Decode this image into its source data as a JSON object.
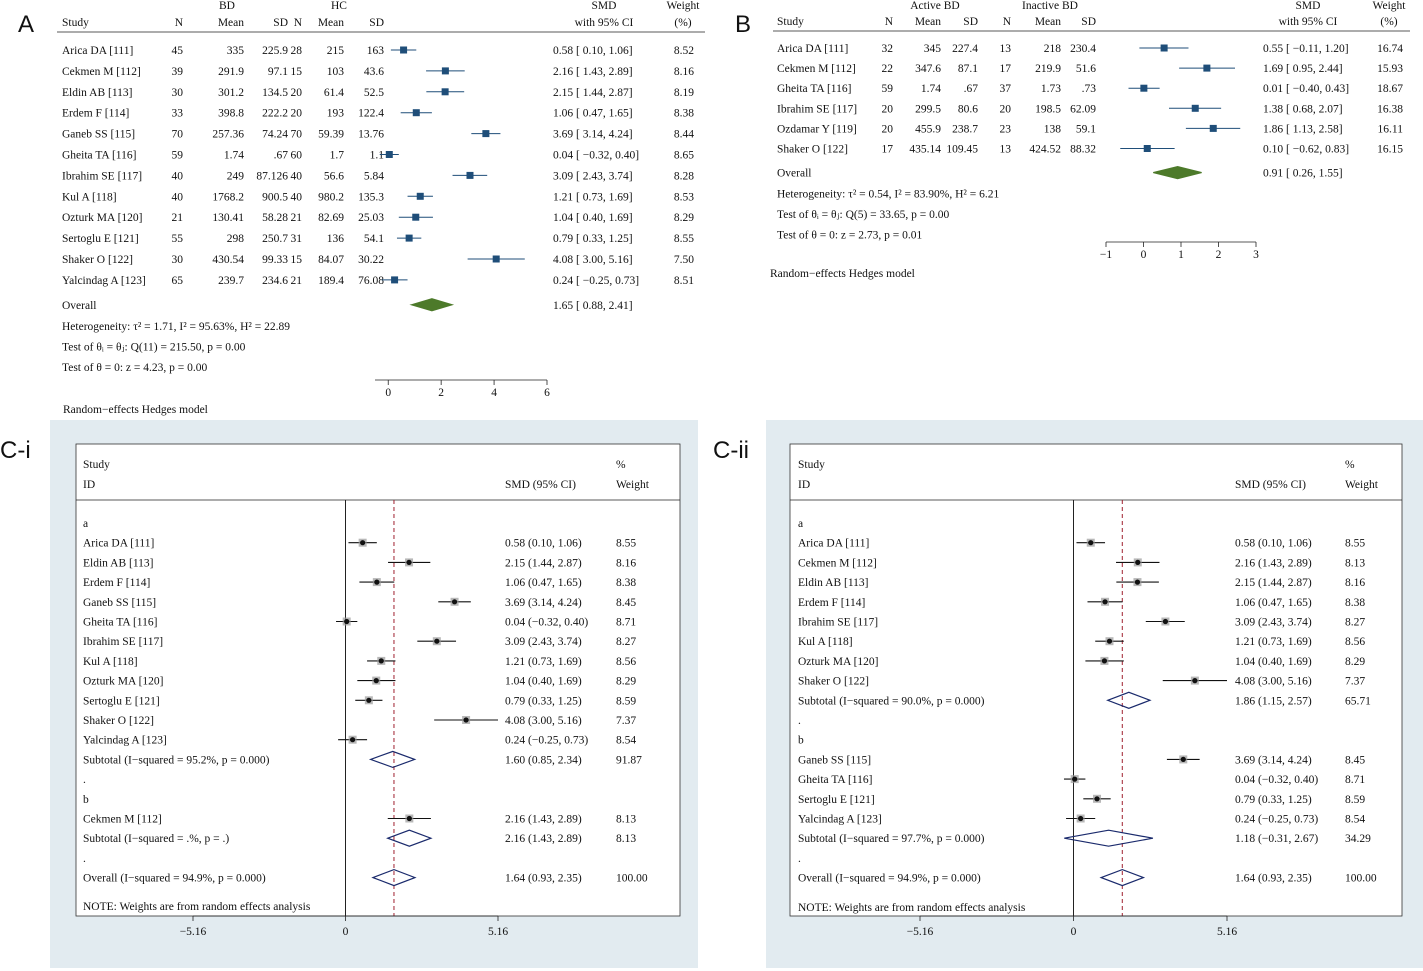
{
  "chart_data": [
    {
      "panel": "A",
      "type": "forest",
      "group_headers": [
        "BD",
        "HC"
      ],
      "columns": [
        "Study",
        "N",
        "Mean",
        "SD",
        "N",
        "Mean",
        "SD"
      ],
      "effect_header": [
        "SMD",
        "with 95% CI"
      ],
      "weight_header": [
        "Weight",
        "(%)"
      ],
      "rows": [
        {
          "study": "Arica DA [111]",
          "c1": "45",
          "c2": "335",
          "c3": "225.9",
          "c4": "28",
          "c5": "215",
          "c6": "163",
          "smd": 0.58,
          "lo": 0.1,
          "hi": 1.06,
          "ci": "0.58 [   0.10,  1.06]",
          "w": "8.52"
        },
        {
          "study": "Cekmen M [112]",
          "c1": "39",
          "c2": "291.9",
          "c3": "97.1",
          "c4": "15",
          "c5": "103",
          "c6": "43.6",
          "smd": 2.16,
          "lo": 1.43,
          "hi": 2.89,
          "ci": "2.16 [   1.43,  2.89]",
          "w": "8.16"
        },
        {
          "study": "Eldin AB [113]",
          "c1": "30",
          "c2": "301.2",
          "c3": "134.5",
          "c4": "20",
          "c5": "61.4",
          "c6": "52.5",
          "smd": 2.15,
          "lo": 1.44,
          "hi": 2.87,
          "ci": "2.15 [   1.44,  2.87]",
          "w": "8.19"
        },
        {
          "study": "Erdem F [114]",
          "c1": "33",
          "c2": "398.8",
          "c3": "222.2",
          "c4": "20",
          "c5": "193",
          "c6": "122.4",
          "smd": 1.06,
          "lo": 0.47,
          "hi": 1.65,
          "ci": "1.06 [   0.47,  1.65]",
          "w": "8.38"
        },
        {
          "study": "Ganeb SS [115]",
          "c1": "70",
          "c2": "257.36",
          "c3": "74.24",
          "c4": "70",
          "c5": "59.39",
          "c6": "13.76",
          "smd": 3.69,
          "lo": 3.14,
          "hi": 4.24,
          "ci": "3.69 [   3.14,  4.24]",
          "w": "8.44"
        },
        {
          "study": "Gheita TA [116]",
          "c1": "59",
          "c2": "1.74",
          "c3": ".67",
          "c4": "60",
          "c5": "1.7",
          "c6": "1.1",
          "smd": 0.04,
          "lo": -0.32,
          "hi": 0.4,
          "ci": "0.04 [ −0.32,  0.40]",
          "w": "8.65"
        },
        {
          "study": "Ibrahim SE [117]",
          "c1": "40",
          "c2": "249",
          "c3": "87.126",
          "c4": "40",
          "c5": "56.6",
          "c6": "5.84",
          "smd": 3.09,
          "lo": 2.43,
          "hi": 3.74,
          "ci": "3.09 [   2.43,  3.74]",
          "w": "8.28"
        },
        {
          "study": "Kul A [118]",
          "c1": "40",
          "c2": "1768.2",
          "c3": "900.5",
          "c4": "40",
          "c5": "980.2",
          "c6": "135.3",
          "smd": 1.21,
          "lo": 0.73,
          "hi": 1.69,
          "ci": "1.21 [   0.73,  1.69]",
          "w": "8.53"
        },
        {
          "study": "Ozturk MA [120]",
          "c1": "21",
          "c2": "130.41",
          "c3": "58.28",
          "c4": "21",
          "c5": "82.69",
          "c6": "25.03",
          "smd": 1.04,
          "lo": 0.4,
          "hi": 1.69,
          "ci": "1.04 [   0.40,  1.69]",
          "w": "8.29"
        },
        {
          "study": "Sertoglu E [121]",
          "c1": "55",
          "c2": "298",
          "c3": "250.7",
          "c4": "31",
          "c5": "136",
          "c6": "54.1",
          "smd": 0.79,
          "lo": 0.33,
          "hi": 1.25,
          "ci": "0.79 [   0.33,  1.25]",
          "w": "8.55"
        },
        {
          "study": "Shaker O [122]",
          "c1": "30",
          "c2": "430.54",
          "c3": "99.33",
          "c4": "15",
          "c5": "84.07",
          "c6": "30.22",
          "smd": 4.08,
          "lo": 3.0,
          "hi": 5.16,
          "ci": "4.08 [   3.00,  5.16]",
          "w": "7.50"
        },
        {
          "study": "Yalcindag A [123]",
          "c1": "65",
          "c2": "239.7",
          "c3": "234.6",
          "c4": "21",
          "c5": "189.4",
          "c6": "76.08",
          "smd": 0.24,
          "lo": -0.25,
          "hi": 0.73,
          "ci": "0.24 [ −0.25,  0.73]",
          "w": "8.51"
        }
      ],
      "overall": {
        "label": "Overall",
        "smd": 1.65,
        "lo": 0.88,
        "hi": 2.41,
        "ci": "1.65 [   0.88,  2.41]"
      },
      "stats": [
        "Heterogeneity: τ² = 1.71, I² = 95.63%, H² = 22.89",
        "Test of θᵢ = θⱼ: Q(11) = 215.50, p = 0.00",
        "Test of θ = 0: z = 4.23, p = 0.00"
      ],
      "xticks": [
        0,
        2,
        4,
        6
      ],
      "xlim": [
        -0.5,
        6
      ],
      "model": "Random−effects Hedges model"
    },
    {
      "panel": "B",
      "type": "forest",
      "group_headers": [
        "Active BD",
        "Inactive BD"
      ],
      "columns": [
        "Study",
        "N",
        "Mean",
        "SD",
        "N",
        "Mean",
        "SD"
      ],
      "effect_header": [
        "SMD",
        "with 95% CI"
      ],
      "weight_header": [
        "Weight",
        "(%)"
      ],
      "rows": [
        {
          "study": "Arica DA [111]",
          "c1": "32",
          "c2": "345",
          "c3": "227.4",
          "c4": "13",
          "c5": "218",
          "c6": "230.4",
          "smd": 0.55,
          "lo": -0.11,
          "hi": 1.2,
          "ci": "0.55 [ −0.11,  1.20]",
          "w": "16.74"
        },
        {
          "study": "Cekmen M [112]",
          "c1": "22",
          "c2": "347.6",
          "c3": "87.1",
          "c4": "17",
          "c5": "219.9",
          "c6": "51.6",
          "smd": 1.69,
          "lo": 0.95,
          "hi": 2.44,
          "ci": "1.69 [   0.95,  2.44]",
          "w": "15.93"
        },
        {
          "study": "Gheita TA [116]",
          "c1": "59",
          "c2": "1.74",
          "c3": ".67",
          "c4": "37",
          "c5": "1.73",
          "c6": ".73",
          "smd": 0.01,
          "lo": -0.4,
          "hi": 0.43,
          "ci": "0.01 [ −0.40,  0.43]",
          "w": "18.67"
        },
        {
          "study": "Ibrahim SE [117]",
          "c1": "20",
          "c2": "299.5",
          "c3": "80.6",
          "c4": "20",
          "c5": "198.5",
          "c6": "62.09",
          "smd": 1.38,
          "lo": 0.68,
          "hi": 2.07,
          "ci": "1.38 [   0.68,  2.07]",
          "w": "16.38"
        },
        {
          "study": "Ozdamar Y [119]",
          "c1": "20",
          "c2": "455.9",
          "c3": "238.7",
          "c4": "23",
          "c5": "138",
          "c6": "59.1",
          "smd": 1.86,
          "lo": 1.13,
          "hi": 2.58,
          "ci": "1.86 [   1.13,  2.58]",
          "w": "16.11"
        },
        {
          "study": "Shaker O [122]",
          "c1": "17",
          "c2": "435.14",
          "c3": "109.45",
          "c4": "13",
          "c5": "424.52",
          "c6": "88.32",
          "smd": 0.1,
          "lo": -0.62,
          "hi": 0.83,
          "ci": "0.10 [ −0.62,  0.83]",
          "w": "16.15"
        }
      ],
      "overall": {
        "label": "Overall",
        "smd": 0.91,
        "lo": 0.26,
        "hi": 1.55,
        "ci": "0.91 [   0.26,  1.55]"
      },
      "stats": [
        "Heterogeneity: τ² = 0.54, I² = 83.90%, H² = 6.21",
        "Test of θᵢ = θⱼ: Q(5) = 33.65, p = 0.00",
        "Test of θ = 0: z = 2.73, p = 0.01"
      ],
      "xticks": [
        -1,
        0,
        1,
        2,
        3
      ],
      "xlim": [
        -1,
        3
      ],
      "model": "Random−effects Hedges model"
    },
    {
      "panel": "C-i",
      "type": "forest-subgroup",
      "header": {
        "study": [
          "Study",
          "ID"
        ],
        "smd": "SMD (95% CI)",
        "weight": [
          "%",
          "Weight"
        ]
      },
      "items": [
        {
          "kind": "label",
          "text": "a"
        },
        {
          "kind": "study",
          "study": "Arica DA [111]",
          "smd": 0.58,
          "lo": 0.1,
          "hi": 1.06,
          "ci": "0.58 (0.10, 1.06)",
          "w": "8.55"
        },
        {
          "kind": "study",
          "study": "Eldin AB [113]",
          "smd": 2.15,
          "lo": 1.44,
          "hi": 2.87,
          "ci": "2.15 (1.44, 2.87)",
          "w": "8.16"
        },
        {
          "kind": "study",
          "study": "Erdem F [114]",
          "smd": 1.06,
          "lo": 0.47,
          "hi": 1.65,
          "ci": "1.06 (0.47, 1.65)",
          "w": "8.38"
        },
        {
          "kind": "study",
          "study": "Ganeb SS [115]",
          "smd": 3.69,
          "lo": 3.14,
          "hi": 4.24,
          "ci": "3.69 (3.14, 4.24)",
          "w": "8.45"
        },
        {
          "kind": "study",
          "study": "Gheita TA [116]",
          "smd": 0.04,
          "lo": -0.32,
          "hi": 0.4,
          "ci": "0.04 (−0.32, 0.40)",
          "w": "8.71"
        },
        {
          "kind": "study",
          "study": "Ibrahim SE [117]",
          "smd": 3.09,
          "lo": 2.43,
          "hi": 3.74,
          "ci": "3.09 (2.43, 3.74)",
          "w": "8.27"
        },
        {
          "kind": "study",
          "study": "Kul A [118]",
          "smd": 1.21,
          "lo": 0.73,
          "hi": 1.69,
          "ci": "1.21 (0.73, 1.69)",
          "w": "8.56"
        },
        {
          "kind": "study",
          "study": "Ozturk MA [120]",
          "smd": 1.04,
          "lo": 0.4,
          "hi": 1.69,
          "ci": "1.04 (0.40, 1.69)",
          "w": "8.29"
        },
        {
          "kind": "study",
          "study": "Sertoglu E [121]",
          "smd": 0.79,
          "lo": 0.33,
          "hi": 1.25,
          "ci": "0.79 (0.33, 1.25)",
          "w": "8.59"
        },
        {
          "kind": "study",
          "study": "Shaker O [122]",
          "smd": 4.08,
          "lo": 3.0,
          "hi": 5.16,
          "ci": "4.08 (3.00, 5.16)",
          "w": "7.37"
        },
        {
          "kind": "study",
          "study": "Yalcindag A [123]",
          "smd": 0.24,
          "lo": -0.25,
          "hi": 0.73,
          "ci": "0.24 (−0.25, 0.73)",
          "w": "8.54"
        },
        {
          "kind": "subtotal",
          "study": "Subtotal  (I−squared = 95.2%, p = 0.000)",
          "smd": 1.6,
          "lo": 0.85,
          "hi": 2.34,
          "ci": "1.60 (0.85, 2.34)",
          "w": "91.87"
        },
        {
          "kind": "label",
          "text": "."
        },
        {
          "kind": "label",
          "text": "b"
        },
        {
          "kind": "study",
          "study": "Cekmen M [112]",
          "smd": 2.16,
          "lo": 1.43,
          "hi": 2.89,
          "ci": "2.16 (1.43, 2.89)",
          "w": "8.13"
        },
        {
          "kind": "subtotal",
          "study": "Subtotal  (I−squared = .%, p = .)",
          "smd": 2.16,
          "lo": 1.43,
          "hi": 2.89,
          "ci": "2.16 (1.43, 2.89)",
          "w": "8.13"
        },
        {
          "kind": "label",
          "text": "."
        },
        {
          "kind": "overall",
          "study": "Overall  (I−squared = 94.9%, p = 0.000)",
          "smd": 1.64,
          "lo": 0.93,
          "hi": 2.35,
          "ci": "1.64 (0.93, 2.35)",
          "w": "100.00"
        }
      ],
      "note": "NOTE: Weights are from random effects analysis",
      "xticks": [
        "−5.16",
        "0",
        "5.16"
      ],
      "xlim": [
        -5.16,
        5.16
      ],
      "reference_line": 1.64
    },
    {
      "panel": "C-ii",
      "type": "forest-subgroup",
      "header": {
        "study": [
          "Study",
          "ID"
        ],
        "smd": "SMD (95% CI)",
        "weight": [
          "%",
          "Weight"
        ]
      },
      "items": [
        {
          "kind": "label",
          "text": "a"
        },
        {
          "kind": "study",
          "study": "Arica DA [111]",
          "smd": 0.58,
          "lo": 0.1,
          "hi": 1.06,
          "ci": "0.58 (0.10, 1.06)",
          "w": "8.55"
        },
        {
          "kind": "study",
          "study": "Cekmen M [112]",
          "smd": 2.16,
          "lo": 1.43,
          "hi": 2.89,
          "ci": "2.16 (1.43, 2.89)",
          "w": "8.13"
        },
        {
          "kind": "study",
          "study": "Eldin AB [113]",
          "smd": 2.15,
          "lo": 1.44,
          "hi": 2.87,
          "ci": "2.15 (1.44, 2.87)",
          "w": "8.16"
        },
        {
          "kind": "study",
          "study": "Erdem F [114]",
          "smd": 1.06,
          "lo": 0.47,
          "hi": 1.65,
          "ci": "1.06 (0.47, 1.65)",
          "w": "8.38"
        },
        {
          "kind": "study",
          "study": "Ibrahim SE [117]",
          "smd": 3.09,
          "lo": 2.43,
          "hi": 3.74,
          "ci": "3.09 (2.43, 3.74)",
          "w": "8.27"
        },
        {
          "kind": "study",
          "study": "Kul A [118]",
          "smd": 1.21,
          "lo": 0.73,
          "hi": 1.69,
          "ci": "1.21 (0.73, 1.69)",
          "w": "8.56"
        },
        {
          "kind": "study",
          "study": "Ozturk MA [120]",
          "smd": 1.04,
          "lo": 0.4,
          "hi": 1.69,
          "ci": "1.04 (0.40, 1.69)",
          "w": "8.29"
        },
        {
          "kind": "study",
          "study": "Shaker O [122]",
          "smd": 4.08,
          "lo": 3.0,
          "hi": 5.16,
          "ci": "4.08 (3.00, 5.16)",
          "w": "7.37"
        },
        {
          "kind": "subtotal",
          "study": "Subtotal  (I−squared = 90.0%, p = 0.000)",
          "smd": 1.86,
          "lo": 1.15,
          "hi": 2.57,
          "ci": "1.86 (1.15, 2.57)",
          "w": "65.71"
        },
        {
          "kind": "label",
          "text": "."
        },
        {
          "kind": "label",
          "text": "b"
        },
        {
          "kind": "study",
          "study": "Ganeb SS [115]",
          "smd": 3.69,
          "lo": 3.14,
          "hi": 4.24,
          "ci": "3.69 (3.14, 4.24)",
          "w": "8.45"
        },
        {
          "kind": "study",
          "study": "Gheita TA [116]",
          "smd": 0.04,
          "lo": -0.32,
          "hi": 0.4,
          "ci": "0.04 (−0.32, 0.40)",
          "w": "8.71"
        },
        {
          "kind": "study",
          "study": "Sertoglu E [121]",
          "smd": 0.79,
          "lo": 0.33,
          "hi": 1.25,
          "ci": "0.79 (0.33, 1.25)",
          "w": "8.59"
        },
        {
          "kind": "study",
          "study": "Yalcindag A [123]",
          "smd": 0.24,
          "lo": -0.25,
          "hi": 0.73,
          "ci": "0.24 (−0.25, 0.73)",
          "w": "8.54"
        },
        {
          "kind": "subtotal",
          "study": "Subtotal  (I−squared = 97.7%, p = 0.000)",
          "smd": 1.18,
          "lo": -0.31,
          "hi": 2.67,
          "ci": "1.18 (−0.31, 2.67)",
          "w": "34.29"
        },
        {
          "kind": "label",
          "text": "."
        },
        {
          "kind": "overall",
          "study": "Overall  (I−squared = 94.9%, p = 0.000)",
          "smd": 1.64,
          "lo": 0.93,
          "hi": 2.35,
          "ci": "1.64 (0.93, 2.35)",
          "w": "100.00"
        }
      ],
      "note": "NOTE: Weights are from random effects analysis",
      "xticks": [
        "−5.16",
        "0",
        "5.16"
      ],
      "xlim": [
        -5.16,
        5.16
      ],
      "reference_line": 1.64
    }
  ],
  "colors": {
    "marker": "#1f4e79",
    "diamond_fill": "#4d7a2a",
    "subgroup_diamond": "#1a2a6c",
    "ref_line": "#a0202f",
    "panel_bg": "#e2ebf0",
    "plot_bg": "#ffffff"
  }
}
